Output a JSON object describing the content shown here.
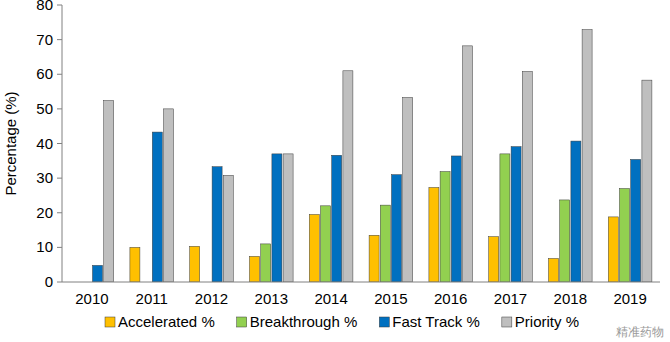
{
  "chart_data": {
    "type": "bar",
    "y_label": "Percentage (%)",
    "categories": [
      "2010",
      "2011",
      "2012",
      "2013",
      "2014",
      "2015",
      "2016",
      "2017",
      "2018",
      "2019"
    ],
    "series": [
      {
        "name": "Accelerated %",
        "color": "#FFC000",
        "values": [
          0,
          10,
          10.3,
          7.4,
          19.5,
          13.5,
          27.3,
          13.1,
          6.8,
          18.8
        ]
      },
      {
        "name": "Breakthrough %",
        "color": "#92D050",
        "values": [
          0,
          0,
          0,
          11,
          22,
          22.2,
          31.9,
          37,
          23.7,
          27
        ]
      },
      {
        "name": "Fast Track %",
        "color": "#0070C0",
        "values": [
          4.8,
          43.3,
          33.3,
          37,
          36.6,
          31,
          36.4,
          39.1,
          40.7,
          35.4
        ]
      },
      {
        "name": "Priority %",
        "color": "#BFBFBF",
        "values": [
          52.4,
          50,
          30.8,
          37,
          61,
          53.3,
          68.2,
          60.8,
          72.9,
          58.3
        ]
      }
    ],
    "ylim": [
      0,
      80
    ],
    "yticks": [
      0,
      10,
      20,
      30,
      40,
      50,
      60,
      70,
      80
    ],
    "grid": false,
    "legend": "bottom",
    "annotations": [
      "精准药物"
    ]
  }
}
